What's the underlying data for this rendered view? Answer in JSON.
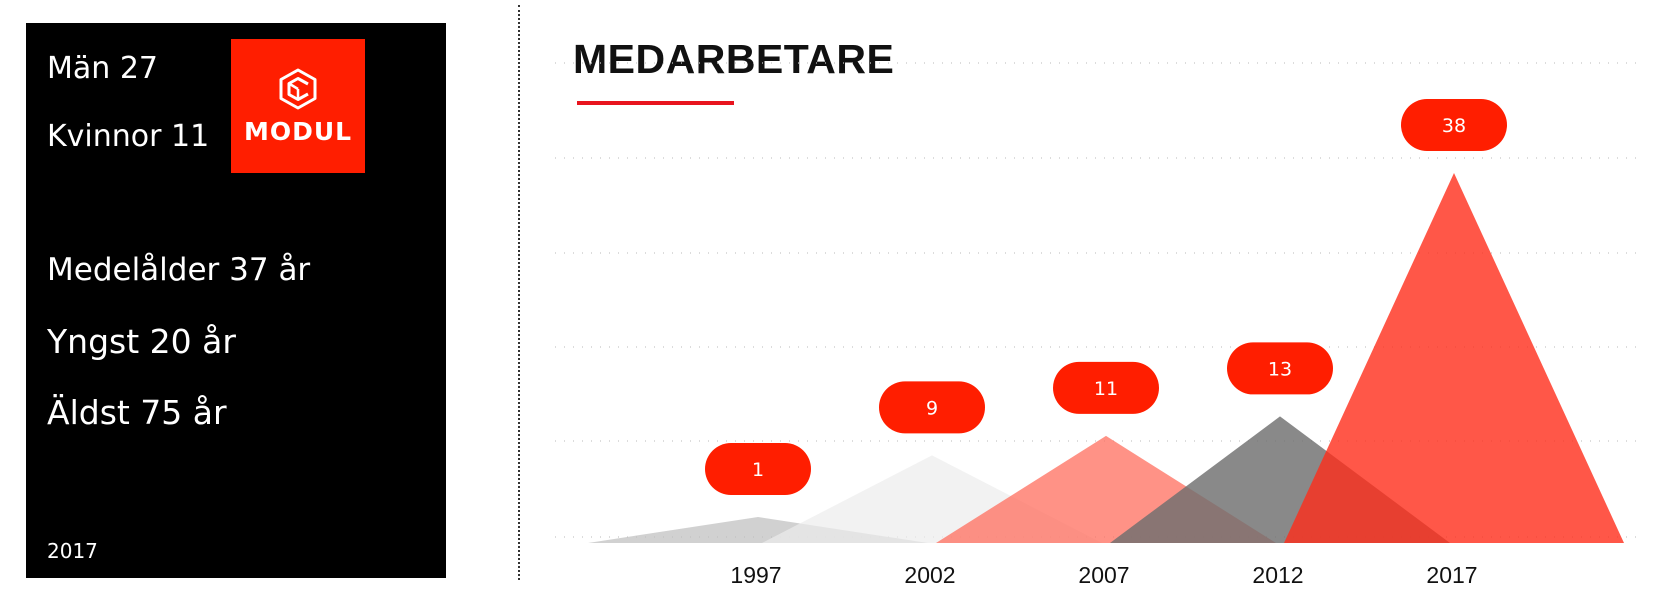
{
  "panel": {
    "men": "Män 27",
    "women": "Kvinnor 11",
    "avg_age": "Medelålder 37 år",
    "youngest": "Yngst 20 år",
    "oldest": "Äldst 75 år",
    "year": "2017",
    "logo_text": "MODUL",
    "logo_icon": "modul-cube-icon"
  },
  "colors": {
    "accent": "#ff1e00",
    "panel_bg": "#000000",
    "underline": "#e8141e"
  },
  "chart_data": {
    "type": "area",
    "title": "MEDARBETARE",
    "xlabel": "",
    "ylabel": "",
    "categories": [
      "1997",
      "2002",
      "2007",
      "2012",
      "2017"
    ],
    "values": [
      1,
      9,
      11,
      13,
      38
    ],
    "ylim": [
      0,
      40
    ],
    "grid": true,
    "legend": "none",
    "shape": "triangle",
    "series_colors": [
      "#bdbdbd",
      "#ececec",
      "#ff6e5e",
      "#6f6f6f",
      "#ff2d1a"
    ],
    "series_opacity": [
      0.7,
      0.7,
      0.75,
      0.82,
      0.8
    ],
    "label_color": "#ff1e00"
  }
}
